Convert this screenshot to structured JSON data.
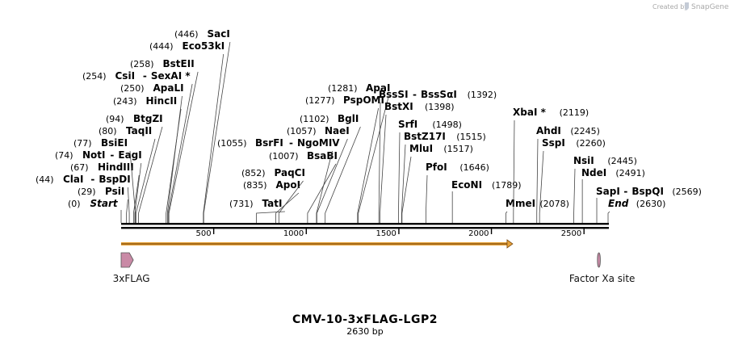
{
  "branding": {
    "created_by": "Created by",
    "product": "SnapGene"
  },
  "map": {
    "title": "CMV-10-3xFLAG-LGP2",
    "length_label": "2630 bp",
    "length": 2630,
    "ticks": [
      {
        "value": 500,
        "label": "500"
      },
      {
        "value": 1000,
        "label": "1000"
      },
      {
        "value": 1500,
        "label": "1500"
      },
      {
        "value": 2000,
        "label": "2000"
      },
      {
        "value": 2500,
        "label": "2500"
      }
    ],
    "sites": [
      {
        "pos": 0,
        "pos_label": "(0)",
        "name": "Start",
        "italic": true
      },
      {
        "pos": 29,
        "pos_label": "(29)",
        "name": "PsiI"
      },
      {
        "pos": 44,
        "pos_label": "(44)",
        "name": "ClaI",
        "alt": "BspDI"
      },
      {
        "pos": 67,
        "pos_label": "(67)",
        "name": "HindIII"
      },
      {
        "pos": 74,
        "pos_label": "(74)",
        "name": "NotI",
        "alt": "EagI"
      },
      {
        "pos": 77,
        "pos_label": "(77)",
        "name": "BsiEI"
      },
      {
        "pos": 80,
        "pos_label": "(80)",
        "name": "TaqII"
      },
      {
        "pos": 94,
        "pos_label": "(94)",
        "name": "BtgZI"
      },
      {
        "pos": 243,
        "pos_label": "(243)",
        "name": "HincII"
      },
      {
        "pos": 250,
        "pos_label": "(250)",
        "name": "ApaLI"
      },
      {
        "pos": 254,
        "pos_label": "(254)",
        "name": "CsiI",
        "alt": "SexAI *"
      },
      {
        "pos": 258,
        "pos_label": "(258)",
        "name": "BstEII"
      },
      {
        "pos": 444,
        "pos_label": "(444)",
        "name": "Eco53kI"
      },
      {
        "pos": 446,
        "pos_label": "(446)",
        "name": "SacI"
      },
      {
        "pos": 731,
        "pos_label": "(731)",
        "name": "TatI"
      },
      {
        "pos": 835,
        "pos_label": "(835)",
        "name": "ApoI"
      },
      {
        "pos": 852,
        "pos_label": "(852)",
        "name": "PaqCI"
      },
      {
        "pos": 1007,
        "pos_label": "(1007)",
        "name": "BsaBI"
      },
      {
        "pos": 1055,
        "pos_label": "(1055)",
        "name": "BsrFI",
        "alt": "NgoMIV"
      },
      {
        "pos": 1057,
        "pos_label": "(1057)",
        "name": "NaeI"
      },
      {
        "pos": 1102,
        "pos_label": "(1102)",
        "name": "BglI"
      },
      {
        "pos": 1277,
        "pos_label": "(1277)",
        "name": "PspOMI"
      },
      {
        "pos": 1281,
        "pos_label": "(1281)",
        "name": "ApaI"
      },
      {
        "pos": 1392,
        "pos_label": "(1392)",
        "name": "BssSI",
        "alt": "BssSαI"
      },
      {
        "pos": 1398,
        "pos_label": "(1398)",
        "name": "BstXI"
      },
      {
        "pos": 1498,
        "pos_label": "(1498)",
        "name": "SrfI"
      },
      {
        "pos": 1515,
        "pos_label": "(1515)",
        "name": "BstZ17I"
      },
      {
        "pos": 1517,
        "pos_label": "(1517)",
        "name": "MluI"
      },
      {
        "pos": 1646,
        "pos_label": "(1646)",
        "name": "PfoI"
      },
      {
        "pos": 1789,
        "pos_label": "(1789)",
        "name": "EcoNI"
      },
      {
        "pos": 2078,
        "pos_label": "(2078)",
        "name": "MmeI"
      },
      {
        "pos": 2119,
        "pos_label": "(2119)",
        "name": "XbaI *"
      },
      {
        "pos": 2245,
        "pos_label": "(2245)",
        "name": "AhdI"
      },
      {
        "pos": 2260,
        "pos_label": "(2260)",
        "name": "SspI"
      },
      {
        "pos": 2445,
        "pos_label": "(2445)",
        "name": "NsiI"
      },
      {
        "pos": 2491,
        "pos_label": "(2491)",
        "name": "NdeI"
      },
      {
        "pos": 2569,
        "pos_label": "(2569)",
        "name": "SapI",
        "alt": "BspQI"
      },
      {
        "pos": 2630,
        "pos_label": "(2630)",
        "name": "End",
        "italic": true
      }
    ],
    "orf": {
      "start": 0,
      "end": 2115,
      "color": "#e8a33a"
    },
    "features": [
      {
        "name": "3xFLAG",
        "start": 0,
        "end": 66,
        "color": "#c98aa6"
      },
      {
        "name": "Factor Xa site",
        "start": 2570,
        "end": 2582,
        "color": "#c98aa6"
      }
    ],
    "colors": {
      "backbone": "#000000",
      "cut_line": "#444444"
    }
  }
}
